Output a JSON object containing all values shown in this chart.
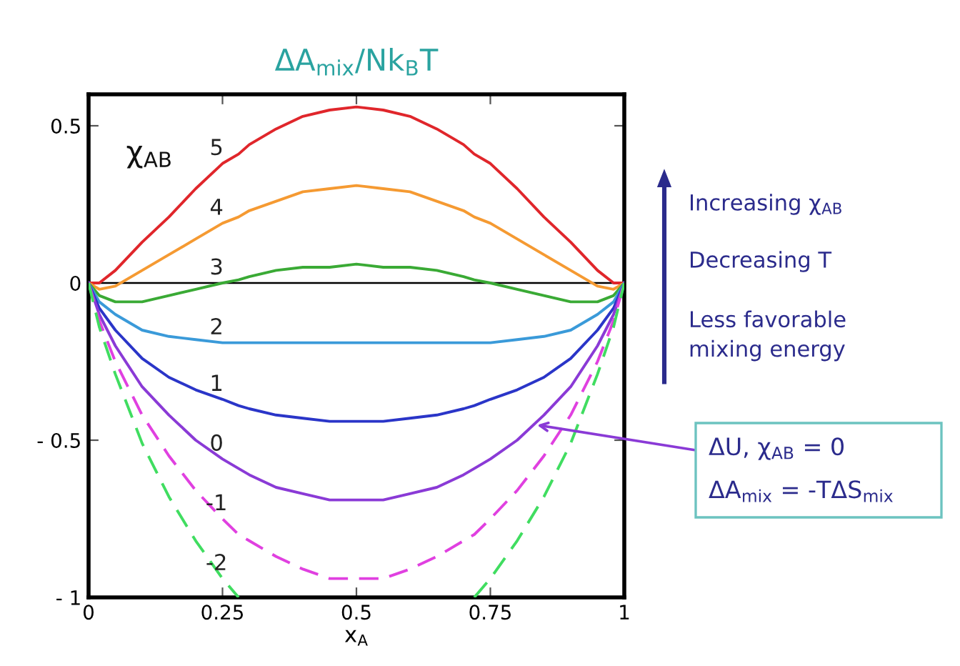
{
  "chart_data": {
    "type": "line",
    "title": "ΔA$_{mix}$/Nk$_{B}$T",
    "xlabel": "x$_{A}$",
    "x": [
      0,
      0.02,
      0.05,
      0.1,
      0.15,
      0.2,
      0.25,
      0.28,
      0.3,
      0.35,
      0.4,
      0.45,
      0.5,
      0.55,
      0.6,
      0.65,
      0.7,
      0.72,
      0.75,
      0.8,
      0.85,
      0.9,
      0.95,
      0.98,
      1
    ],
    "series": [
      {
        "name": "5",
        "color": "#e0262b",
        "values": [
          0,
          0.0,
          0.04,
          0.13,
          0.21,
          0.3,
          0.38,
          0.41,
          0.44,
          0.49,
          0.53,
          0.55,
          0.56,
          0.55,
          0.53,
          0.49,
          0.44,
          0.41,
          0.38,
          0.3,
          0.21,
          0.13,
          0.04,
          0.0,
          0
        ]
      },
      {
        "name": "4",
        "color": "#f59a32",
        "values": [
          0,
          -0.02,
          -0.01,
          0.04,
          0.09,
          0.14,
          0.19,
          0.21,
          0.23,
          0.26,
          0.29,
          0.3,
          0.31,
          0.3,
          0.29,
          0.26,
          0.23,
          0.21,
          0.19,
          0.14,
          0.09,
          0.04,
          -0.01,
          -0.02,
          0
        ]
      },
      {
        "name": "3",
        "color": "#3aaa35",
        "values": [
          0,
          -0.04,
          -0.06,
          -0.06,
          -0.04,
          -0.02,
          0.0,
          0.01,
          0.02,
          0.04,
          0.05,
          0.05,
          0.06,
          0.05,
          0.05,
          0.04,
          0.02,
          0.01,
          0.0,
          -0.02,
          -0.04,
          -0.06,
          -0.06,
          -0.04,
          0
        ]
      },
      {
        "name": "2",
        "color": "#3a9ad9",
        "values": [
          0,
          -0.06,
          -0.1,
          -0.15,
          -0.17,
          -0.18,
          -0.19,
          -0.19,
          -0.19,
          -0.19,
          -0.19,
          -0.19,
          -0.19,
          -0.19,
          -0.19,
          -0.19,
          -0.19,
          -0.19,
          -0.19,
          -0.18,
          -0.17,
          -0.15,
          -0.1,
          -0.06,
          0
        ]
      },
      {
        "name": "1",
        "color": "#2a35c8",
        "values": [
          0,
          -0.08,
          -0.15,
          -0.24,
          -0.3,
          -0.34,
          -0.37,
          -0.39,
          -0.4,
          -0.42,
          -0.43,
          -0.44,
          -0.44,
          -0.44,
          -0.43,
          -0.42,
          -0.4,
          -0.39,
          -0.37,
          -0.34,
          -0.3,
          -0.24,
          -0.15,
          -0.08,
          0
        ]
      },
      {
        "name": "0",
        "color": "#8a3ad6",
        "values": [
          0,
          -0.1,
          -0.2,
          -0.33,
          -0.42,
          -0.5,
          -0.56,
          -0.59,
          -0.61,
          -0.65,
          -0.67,
          -0.69,
          -0.69,
          -0.69,
          -0.67,
          -0.65,
          -0.61,
          -0.59,
          -0.56,
          -0.5,
          -0.42,
          -0.33,
          -0.2,
          -0.1,
          0
        ]
      },
      {
        "name": "-1",
        "color": "#e040e0",
        "line_style": "dashed",
        "values": [
          0,
          -0.12,
          -0.25,
          -0.42,
          -0.55,
          -0.66,
          -0.75,
          -0.8,
          -0.82,
          -0.87,
          -0.91,
          -0.94,
          -0.94,
          -0.94,
          -0.91,
          -0.87,
          -0.82,
          -0.8,
          -0.75,
          -0.66,
          -0.55,
          -0.42,
          -0.25,
          -0.12,
          0
        ]
      },
      {
        "name": "-2",
        "color": "#40dd60",
        "line_style": "dashed",
        "values": [
          0,
          -0.14,
          -0.29,
          -0.51,
          -0.68,
          -0.82,
          -0.94,
          -1.0,
          null,
          null,
          null,
          null,
          null,
          null,
          null,
          null,
          null,
          -1.0,
          -0.94,
          -0.82,
          -0.68,
          -0.51,
          -0.29,
          -0.14,
          0
        ]
      }
    ],
    "xlim": [
      0,
      1
    ],
    "ylim": [
      -1,
      0.6
    ],
    "xticks": [
      0,
      0.25,
      0.5,
      0.75,
      1
    ],
    "yticks": [
      {
        "value": -1,
        "label": "- 1"
      },
      {
        "value": -0.5,
        "label": "- 0.5"
      },
      0,
      0.5
    ],
    "ref_lines": [
      {
        "axis": "y",
        "value": 0,
        "color": "#000000"
      }
    ],
    "grid": false,
    "legend": false,
    "marker": "none",
    "line_style": "solid",
    "annotations": [
      "χ$_{AB}$",
      "Increasing χ$_{AB}$",
      "Decreasing T",
      "Less favorable\nmixing energy",
      {
        "text": "ΔU, χ$_{AB}$ = 0",
        "x": 0.83,
        "y": -0.45
      },
      "ΔA$_{mix}$ = -TΔS$_{mix}$"
    ]
  }
}
